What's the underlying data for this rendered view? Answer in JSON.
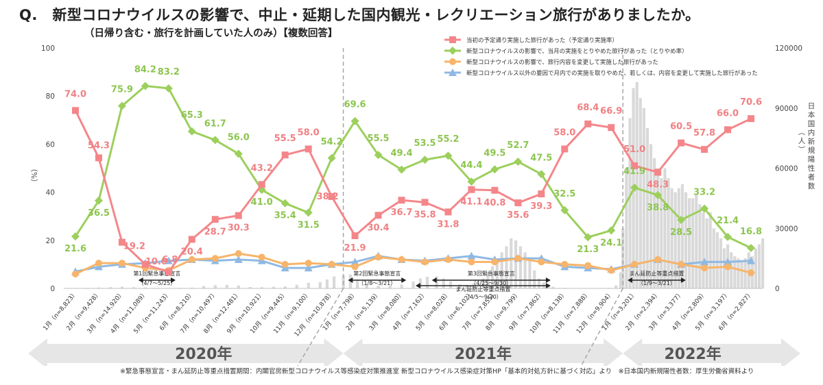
{
  "title": "Q.　新型コロナウイルスの影響で、中止・延期した国内観光・レクリエーション旅行がありましたか。",
  "subtitle": "（日帰り含む・旅行を計画していた人のみ）【複数回答】",
  "footnote": "※緊急事態宣言・まん延防止等重点措置期間：内閣官房新型コロナウイルス等感染症対策推進室 新型コロナウイルス感染症対策HP「基本的対処方針に基づく対応」より　※日本国内新規陽性者数：厚生労働省資料より",
  "colors": {
    "red": "#f4868a",
    "green": "#9ccf5c",
    "orange": "#f7b46a",
    "blue": "#8fb9e3",
    "bars": "#d9d9d9",
    "arrow": "#e6e6e6"
  },
  "chart_data": {
    "type": "line",
    "title": "新型コロナウイルスの影響で、中止・延期した国内観光・レクリエーション旅行がありましたか。",
    "ylabel": "（%）",
    "y2label": "日本国内新規陽性者数（人）",
    "ylim": [
      0,
      100
    ],
    "y2lim": [
      0,
      120000
    ],
    "yticks": [
      "0",
      "20",
      "40",
      "60",
      "80",
      "100"
    ],
    "y2ticks": [
      "0",
      "30000",
      "60000",
      "90000",
      "120000"
    ],
    "grid": false,
    "legend_position": "top-right",
    "categories": [
      "1月（n=8,823）",
      "2月（n=9,428）",
      "3月（n=14,920）",
      "4月（n=11,089）",
      "5月（n=11,243）",
      "6月（n=8,210）",
      "7月（n=10,497）",
      "8月（n=12,481）",
      "9月（n=10,921）",
      "10月（n=9,445）",
      "11月（n=9,100）",
      "12月（n=10,878）",
      "1月（n=7,798）",
      "2月（n=5,139）",
      "3月（n=8,080）",
      "4月（n=7,162）",
      "5月（n=8,028）",
      "6月（n=6,102）",
      "7月（n=7,855）",
      "8月（n=9,799）",
      "9月（n=7,862）",
      "10月（n=8,138）",
      "11月（n=7,888）",
      "12月（n=9,904）",
      "1月（n=3,201）",
      "2月（n=2,394）",
      "3月（n=3,377）",
      "4月（n=2,809）",
      "5月（n=3,197）",
      "6月（n=2,827）"
    ],
    "years": [
      {
        "label": "2020年",
        "start": 0,
        "end": 11
      },
      {
        "label": "2021年",
        "start": 12,
        "end": 23
      },
      {
        "label": "2022年",
        "start": 24,
        "end": 29
      }
    ],
    "series": [
      {
        "name": "当初の予定通り実施した旅行があった（予定通り実施率）",
        "color": "#f4868a",
        "marker": "square",
        "values": [
          74.0,
          54.3,
          19.2,
          10.0,
          6.8,
          20.4,
          28.7,
          30.3,
          43.2,
          55.5,
          58.0,
          38.2,
          21.9,
          30.4,
          36.7,
          35.8,
          31.8,
          41.1,
          40.8,
          35.6,
          39.3,
          58.0,
          68.4,
          66.9,
          51.0,
          48.3,
          60.5,
          57.8,
          66.0,
          70.6
        ]
      },
      {
        "name": "新型コロナウイルスの影響で、当月の実施をとりやめた旅行があった（とりやめ率）",
        "color": "#9ccf5c",
        "marker": "diamond",
        "values": [
          21.6,
          36.5,
          75.9,
          84.2,
          83.2,
          65.3,
          61.7,
          56.0,
          41.0,
          35.4,
          31.5,
          54.2,
          69.6,
          55.5,
          49.4,
          53.5,
          55.2,
          44.4,
          49.5,
          52.7,
          47.5,
          32.5,
          21.3,
          24.1,
          41.9,
          38.8,
          28.5,
          33.2,
          21.4,
          16.8
        ]
      },
      {
        "name": "新型コロナウイルスの影響で、旅行内容を変更して実施した旅行があった",
        "color": "#f7b46a",
        "marker": "circle",
        "values": [
          6.0,
          10.5,
          10.5,
          8.5,
          7.5,
          12.0,
          12.5,
          14.5,
          13.0,
          10.0,
          10.5,
          10.0,
          9.0,
          13.0,
          12.0,
          11.0,
          12.0,
          11.0,
          11.0,
          12.5,
          11.0,
          10.0,
          9.5,
          7.5,
          10.0,
          12.0,
          10.0,
          8.5,
          9.0,
          6.5
        ]
      },
      {
        "name": "新型コロナウイルス以外の要因で月内での実施を取りやめた、若しくは、内容を変更して実施した旅行があった",
        "color": "#8fb9e3",
        "marker": "triangle",
        "values": [
          7.0,
          9.0,
          10.0,
          10.5,
          11.5,
          12.0,
          11.5,
          12.0,
          11.5,
          8.5,
          8.5,
          10.0,
          11.0,
          13.5,
          12.0,
          11.5,
          12.5,
          13.5,
          12.0,
          12.5,
          12.5,
          9.0,
          8.5,
          8.0,
          10.0,
          12.0,
          10.0,
          11.0,
          11.0,
          11.5
        ]
      }
    ],
    "label_offsets": {
      "red": [
        [
          0,
          -20
        ],
        [
          0,
          -14
        ],
        [
          18,
          10
        ],
        [
          16,
          0
        ],
        [
          2,
          -14
        ],
        [
          0,
          0
        ],
        [
          0,
          0
        ],
        [
          0,
          0
        ],
        [
          0,
          -20
        ],
        [
          0,
          -20
        ],
        [
          0,
          -20
        ],
        [
          -6,
          4
        ],
        [
          0,
          0
        ],
        [
          0,
          0
        ],
        [
          0,
          0
        ],
        [
          0,
          0
        ],
        [
          0,
          0
        ],
        [
          0,
          0
        ],
        [
          0,
          0
        ],
        [
          0,
          0
        ],
        [
          0,
          0
        ],
        [
          0,
          -20
        ],
        [
          0,
          -20
        ],
        [
          0,
          -20
        ],
        [
          0,
          -20
        ],
        [
          0,
          0
        ],
        [
          0,
          -20
        ],
        [
          0,
          -20
        ],
        [
          0,
          -20
        ],
        [
          0,
          -20
        ]
      ],
      "green": [
        [
          0,
          0
        ],
        [
          0,
          0
        ],
        [
          0,
          -20
        ],
        [
          0,
          -20
        ],
        [
          0,
          -20
        ],
        [
          0,
          -20
        ],
        [
          0,
          -20
        ],
        [
          0,
          -20
        ],
        [
          0,
          0
        ],
        [
          0,
          0
        ],
        [
          0,
          0
        ],
        [
          0,
          -20
        ],
        [
          0,
          -20
        ],
        [
          0,
          -20
        ],
        [
          0,
          -20
        ],
        [
          0,
          -20
        ],
        [
          0,
          -20
        ],
        [
          0,
          -20
        ],
        [
          0,
          -20
        ],
        [
          0,
          -20
        ],
        [
          0,
          -20
        ],
        [
          0,
          -20
        ],
        [
          0,
          0
        ],
        [
          0,
          0
        ],
        [
          0,
          -20
        ],
        [
          0,
          0
        ],
        [
          0,
          0
        ],
        [
          0,
          -20
        ],
        [
          0,
          -20
        ],
        [
          0,
          -20
        ]
      ]
    },
    "cases_bars": [
      {
        "x": 0.0,
        "v": 100
      },
      {
        "x": 0.5,
        "v": 200
      },
      {
        "x": 1.0,
        "v": 300
      },
      {
        "x": 1.5,
        "v": 400
      },
      {
        "x": 2.0,
        "v": 600
      },
      {
        "x": 2.5,
        "v": 900
      },
      {
        "x": 3.0,
        "v": 600
      },
      {
        "x": 3.5,
        "v": 500
      },
      {
        "x": 4.0,
        "v": 300
      },
      {
        "x": 4.5,
        "v": 200
      },
      {
        "x": 5.0,
        "v": 300
      },
      {
        "x": 5.5,
        "v": 400
      },
      {
        "x": 6.0,
        "v": 1200
      },
      {
        "x": 6.5,
        "v": 1600
      },
      {
        "x": 7.0,
        "v": 1800
      },
      {
        "x": 7.5,
        "v": 1500
      },
      {
        "x": 8.0,
        "v": 700
      },
      {
        "x": 8.5,
        "v": 600
      },
      {
        "x": 9.0,
        "v": 800
      },
      {
        "x": 9.5,
        "v": 1000
      },
      {
        "x": 10.0,
        "v": 1800
      },
      {
        "x": 10.5,
        "v": 2800
      },
      {
        "x": 11.0,
        "v": 3200
      },
      {
        "x": 11.3,
        "v": 4500
      },
      {
        "x": 11.6,
        "v": 6000
      },
      {
        "x": 12.0,
        "v": 6500
      },
      {
        "x": 12.3,
        "v": 7000
      },
      {
        "x": 12.6,
        "v": 4500
      },
      {
        "x": 13.0,
        "v": 2000
      },
      {
        "x": 13.5,
        "v": 1300
      },
      {
        "x": 14.0,
        "v": 1400
      },
      {
        "x": 14.5,
        "v": 2000
      },
      {
        "x": 15.0,
        "v": 3500
      },
      {
        "x": 15.3,
        "v": 5000
      },
      {
        "x": 15.6,
        "v": 5800
      },
      {
        "x": 16.0,
        "v": 6000
      },
      {
        "x": 16.3,
        "v": 5000
      },
      {
        "x": 16.6,
        "v": 3500
      },
      {
        "x": 17.0,
        "v": 2000
      },
      {
        "x": 17.3,
        "v": 1800
      },
      {
        "x": 17.6,
        "v": 2500
      },
      {
        "x": 18.0,
        "v": 5000
      },
      {
        "x": 18.2,
        "v": 8000
      },
      {
        "x": 18.4,
        "v": 11000
      },
      {
        "x": 18.6,
        "v": 14000
      },
      {
        "x": 18.8,
        "v": 18000
      },
      {
        "x": 19.0,
        "v": 21000
      },
      {
        "x": 19.2,
        "v": 25000
      },
      {
        "x": 19.4,
        "v": 24000
      },
      {
        "x": 19.6,
        "v": 21000
      },
      {
        "x": 19.8,
        "v": 18000
      },
      {
        "x": 20.0,
        "v": 14000
      },
      {
        "x": 20.2,
        "v": 9000
      },
      {
        "x": 20.4,
        "v": 5000
      },
      {
        "x": 20.6,
        "v": 3000
      },
      {
        "x": 20.8,
        "v": 1600
      },
      {
        "x": 21.0,
        "v": 800
      },
      {
        "x": 21.5,
        "v": 300
      },
      {
        "x": 22.0,
        "v": 150
      },
      {
        "x": 22.5,
        "v": 150
      },
      {
        "x": 23.0,
        "v": 200
      },
      {
        "x": 23.4,
        "v": 300
      },
      {
        "x": 23.7,
        "v": 1500
      },
      {
        "x": 23.9,
        "v": 8000
      },
      {
        "x": 24.0,
        "v": 30000
      },
      {
        "x": 24.15,
        "v": 60000
      },
      {
        "x": 24.3,
        "v": 85000
      },
      {
        "x": 24.45,
        "v": 100000
      },
      {
        "x": 24.6,
        "v": 103000
      },
      {
        "x": 24.75,
        "v": 95000
      },
      {
        "x": 24.9,
        "v": 90000
      },
      {
        "x": 25.05,
        "v": 80000
      },
      {
        "x": 25.2,
        "v": 72000
      },
      {
        "x": 25.35,
        "v": 65000
      },
      {
        "x": 25.5,
        "v": 60000
      },
      {
        "x": 25.65,
        "v": 55000
      },
      {
        "x": 25.8,
        "v": 60000
      },
      {
        "x": 25.95,
        "v": 55000
      },
      {
        "x": 26.1,
        "v": 50000
      },
      {
        "x": 26.25,
        "v": 48000
      },
      {
        "x": 26.4,
        "v": 50000
      },
      {
        "x": 26.55,
        "v": 52000
      },
      {
        "x": 26.7,
        "v": 48000
      },
      {
        "x": 26.85,
        "v": 45000
      },
      {
        "x": 27.0,
        "v": 45000
      },
      {
        "x": 27.15,
        "v": 47000
      },
      {
        "x": 27.3,
        "v": 42000
      },
      {
        "x": 27.45,
        "v": 38000
      },
      {
        "x": 27.6,
        "v": 35000
      },
      {
        "x": 27.75,
        "v": 38000
      },
      {
        "x": 27.9,
        "v": 30000
      },
      {
        "x": 28.05,
        "v": 28000
      },
      {
        "x": 28.2,
        "v": 25000
      },
      {
        "x": 28.35,
        "v": 20000
      },
      {
        "x": 28.5,
        "v": 22000
      },
      {
        "x": 28.65,
        "v": 18000
      },
      {
        "x": 28.8,
        "v": 16000
      },
      {
        "x": 28.95,
        "v": 15000
      },
      {
        "x": 29.1,
        "v": 14000
      },
      {
        "x": 29.25,
        "v": 15000
      },
      {
        "x": 29.4,
        "v": 18000
      },
      {
        "x": 29.55,
        "v": 16000
      },
      {
        "x": 29.7,
        "v": 20000
      },
      {
        "x": 29.85,
        "v": 22000
      },
      {
        "x": 30.0,
        "v": 25000
      }
    ],
    "periods": [
      {
        "label": "第1回緊急事態宣言",
        "sub": "（4/7〜5/25）",
        "from": 3.2,
        "to": 4.8,
        "row": 0
      },
      {
        "label": "第2回緊急事態宣言",
        "sub": "（1/8〜3/21）",
        "from": 12.2,
        "to": 14.7,
        "row": 0
      },
      {
        "label": "第3回緊急事態宣言",
        "sub": "（4/25〜9/30）",
        "from": 15.8,
        "to": 20.9,
        "row": 0
      },
      {
        "label": "まん延防止等重点措置",
        "sub": "（4/5〜9/30）",
        "from": 15.1,
        "to": 20.9,
        "row": 1
      },
      {
        "label": "まん延防止等重点措置",
        "sub": "（1/9〜3/21）",
        "from": 24.2,
        "to": 26.7,
        "row": 0
      }
    ]
  }
}
